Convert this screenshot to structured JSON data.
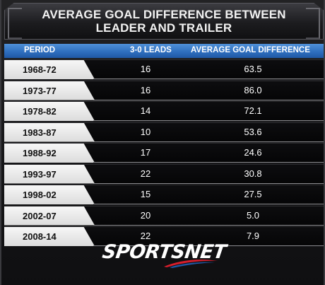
{
  "title_lines": [
    "AVERAGE GOAL DIFFERENCE BETWEEN",
    "LEADER AND TRAILER"
  ],
  "header": {
    "period": "PERIOD",
    "leads": "3-0 LEADS",
    "diff": "AVERAGE GOAL DIFFERENCE"
  },
  "rows": [
    {
      "period": "1968-72",
      "leads": "16",
      "diff": "63.5"
    },
    {
      "period": "1973-77",
      "leads": "16",
      "diff": "86.0"
    },
    {
      "period": "1978-82",
      "leads": "14",
      "diff": "72.1"
    },
    {
      "period": "1983-87",
      "leads": "10",
      "diff": "53.6"
    },
    {
      "period": "1988-92",
      "leads": "17",
      "diff": "24.6"
    },
    {
      "period": "1993-97",
      "leads": "22",
      "diff": "30.8"
    },
    {
      "period": "1998-02",
      "leads": "15",
      "diff": "27.5"
    },
    {
      "period": "2002-07",
      "leads": "20",
      "diff": "5.0"
    },
    {
      "period": "2008-14",
      "leads": "22",
      "diff": "7.9"
    }
  ],
  "logo": {
    "text": "SPORTSNET",
    "accent": "#d81e2c"
  },
  "colors": {
    "header_blue": "#2f6fbf",
    "tab": "#ececec",
    "row_bg": "#0a0a0c"
  }
}
